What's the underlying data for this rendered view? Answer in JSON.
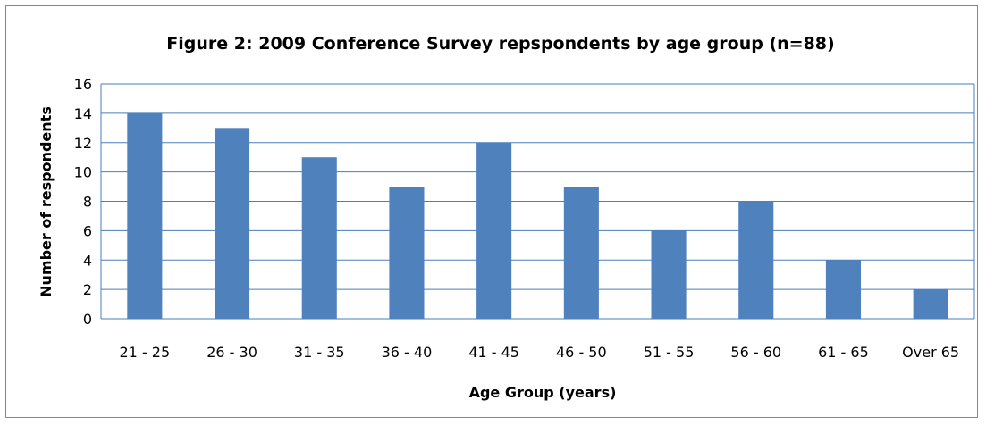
{
  "chart_data": {
    "type": "bar",
    "title": "Figure 2: 2009 Conference Survey repspondents by age group (n=88)",
    "xlabel": "Age Group (years)",
    "ylabel": "Number of respondents",
    "categories": [
      "21 - 25",
      "26 - 30",
      "31 - 35",
      "36 - 40",
      "41 - 45",
      "46 - 50",
      "51 - 55",
      "56 - 60",
      "61 - 65",
      "Over 65"
    ],
    "values": [
      14,
      13,
      11,
      9,
      12,
      9,
      6,
      8,
      4,
      2
    ],
    "ylim": [
      0,
      16
    ],
    "yticks": [
      0,
      2,
      4,
      6,
      8,
      10,
      12,
      14,
      16
    ],
    "grid": true,
    "legend": "none",
    "colors": {
      "bar": "#4f81bd",
      "grid": "#4a7ebb",
      "frame": "#868686"
    }
  }
}
